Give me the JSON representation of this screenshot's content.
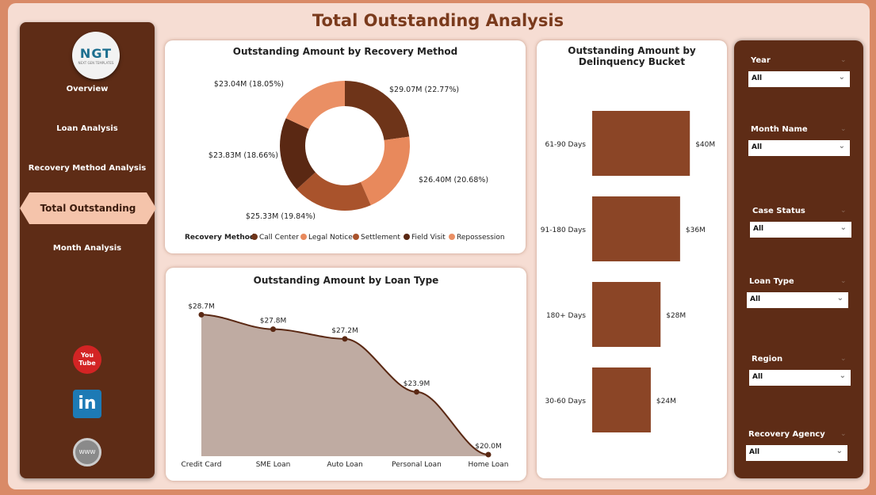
{
  "header": {
    "title": "Total Outstanding  Analysis"
  },
  "logo": {
    "text": "NGT",
    "subtext": "NEXT GEN TEMPLATES"
  },
  "sidebar": {
    "items": [
      {
        "label": "Overview"
      },
      {
        "label": "Loan Analysis"
      },
      {
        "label": "Recovery Method Analysis"
      },
      {
        "label": "Total Outstanding Analysis",
        "active": true
      },
      {
        "label": "Month Analysis"
      }
    ],
    "social": [
      {
        "icon": "youtube-icon",
        "text": "You Tube"
      },
      {
        "icon": "linkedin-icon",
        "text": "in"
      },
      {
        "icon": "globe-icon",
        "text": "WWW"
      }
    ]
  },
  "chart_data": [
    {
      "type": "pie",
      "title": "Outstanding Amount by Recovery Method",
      "legend_title": "Recovery Method",
      "legend_placement": "bottom",
      "slices": [
        {
          "name": "Call Center",
          "value": 29.07,
          "label": "$29.07M (22.77%)",
          "color": "#6e3419"
        },
        {
          "name": "Legal Notice",
          "value": 26.4,
          "label": "$26.40M (20.68%)",
          "color": "#e8895c"
        },
        {
          "name": "Settlement",
          "value": 25.33,
          "label": "$25.33M (19.84%)",
          "color": "#a9532c"
        },
        {
          "name": "Field Visit",
          "value": 23.83,
          "label": "$23.83M (18.66%)",
          "color": "#5a2813"
        },
        {
          "name": "Repossession",
          "value": 23.04,
          "label": "$23.04M (18.05%)",
          "color": "#ea8f64"
        }
      ]
    },
    {
      "type": "area",
      "title": "Outstanding Amount by Loan Type",
      "categories": [
        "Credit Card",
        "SME Loan",
        "Auto Loan",
        "Personal Loan",
        "Home Loan"
      ],
      "values": [
        28.7,
        27.8,
        27.2,
        23.9,
        20.0
      ],
      "labels": [
        "$28.7M",
        "$27.8M",
        "$27.2M",
        "$23.9M",
        "$20.0M"
      ],
      "line_color": "#5a2813",
      "fill_color": "#bfaba2"
    },
    {
      "type": "bar",
      "orientation": "horizontal",
      "title": "Outstanding Amount by Delinquency Bucket",
      "categories": [
        "61-90 Days",
        "91-180 Days",
        "180+ Days",
        "30-60 Days"
      ],
      "values": [
        40,
        36,
        28,
        24
      ],
      "labels": [
        "$40M",
        "$36M",
        "$28M",
        "$24M"
      ],
      "color": "#8b4526"
    }
  ],
  "filters": [
    {
      "label": "Year",
      "value": "All"
    },
    {
      "label": "Month Name",
      "value": "All"
    },
    {
      "label": "Case Status",
      "value": "All"
    },
    {
      "label": "Loan Type",
      "value": "All"
    },
    {
      "label": "Region",
      "value": "All"
    },
    {
      "label": "Recovery Agency",
      "value": "All"
    }
  ]
}
